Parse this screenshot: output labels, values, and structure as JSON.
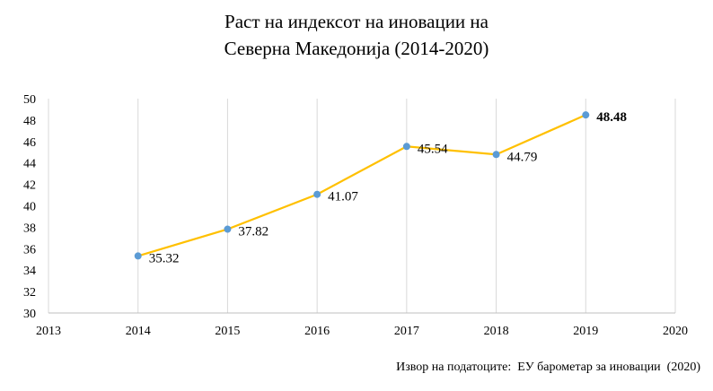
{
  "chart_data": {
    "type": "line",
    "title_lines": [
      "Раст на индексот на иновации на",
      "Северна Македонија  (2014-2020)"
    ],
    "xlabel": "",
    "ylabel": "",
    "x_ticks": [
      "2013",
      "2014",
      "2015",
      "2016",
      "2017",
      "2018",
      "2019",
      "2020"
    ],
    "xlim": [
      2013,
      2020
    ],
    "ylim": [
      30,
      50
    ],
    "y_ticks": [
      30,
      32,
      34,
      36,
      38,
      40,
      42,
      44,
      46,
      48,
      50
    ],
    "grid": "vertical",
    "legend": "none",
    "series": [
      {
        "x": [
          2014,
          2015,
          2016,
          2017,
          2018,
          2019
        ],
        "values": [
          35.32,
          37.82,
          41.07,
          45.54,
          44.79,
          48.48
        ],
        "labels": [
          "35.32",
          "37.82",
          "41.07",
          "45.54",
          "44.79",
          "48.48"
        ],
        "bold_last_label": true,
        "line_color": "#FFC000",
        "marker_color": "#5B9BD5"
      }
    ]
  },
  "source_note": "Извор на податоците:  ЕУ барометар за иновации  (2020)"
}
